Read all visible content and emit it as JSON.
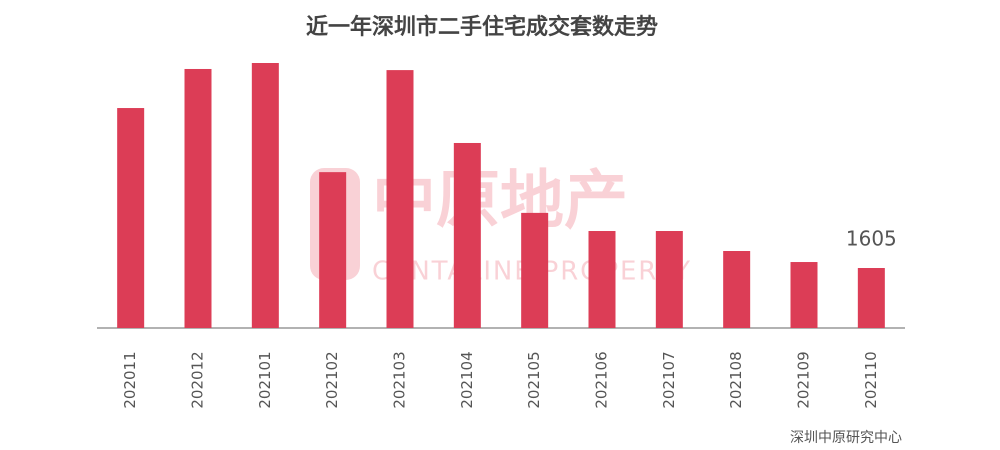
{
  "chart_data": {
    "type": "bar",
    "title": "近一年深圳市二手住宅成交套数走势",
    "categories": [
      "202011",
      "202012",
      "202101",
      "202102",
      "202103",
      "202104",
      "202105",
      "202106",
      "202107",
      "202108",
      "202109",
      "202110"
    ],
    "values": [
      5885,
      6930,
      7090,
      4170,
      6900,
      4950,
      3080,
      2595,
      2595,
      2060,
      1765,
      1605
    ],
    "value_labels": [
      null,
      null,
      null,
      null,
      null,
      null,
      null,
      null,
      null,
      null,
      null,
      "1605"
    ],
    "color": "#dc3d56",
    "watermark": {
      "name": "中原地产",
      "name_en": "CENTALINE PROPERTY"
    },
    "source": "深圳中原研究中心"
  }
}
